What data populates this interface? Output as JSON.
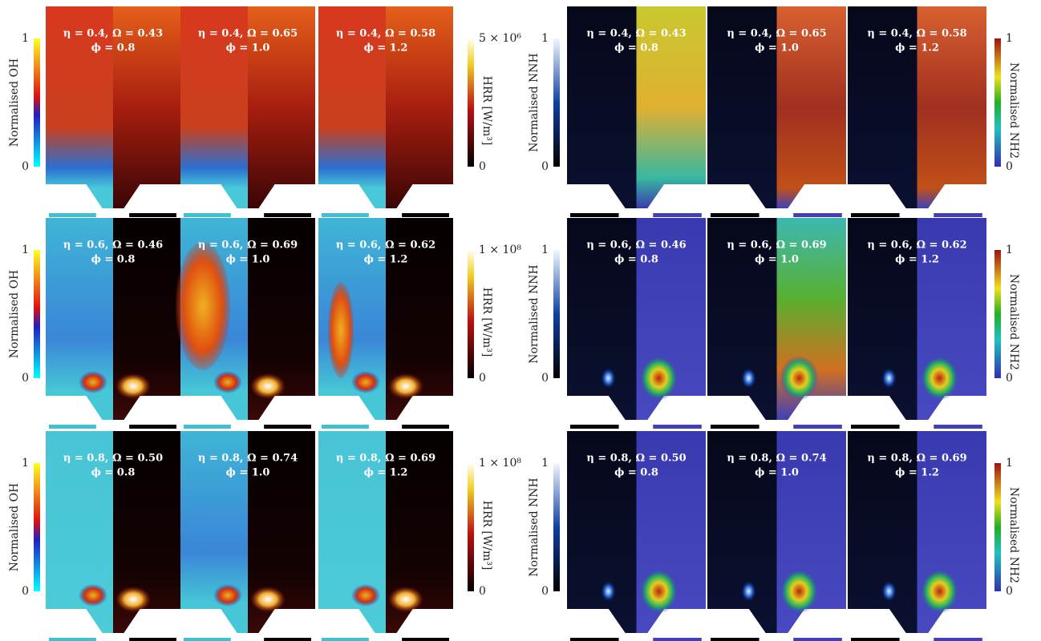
{
  "left": {
    "rows": [
      {
        "bar_a": {
          "label": "Normalised OH",
          "ticks": [
            "1",
            "0"
          ]
        },
        "bar_b": {
          "label": "HRR [W/m³]",
          "ticks": [
            "5 × 10⁶",
            "0"
          ]
        },
        "panels": [
          {
            "line1": "η = 0.4, Ω = 0.43",
            "line2": "ϕ = 0.8"
          },
          {
            "line1": "η = 0.4, Ω = 0.65",
            "line2": "ϕ = 1.0"
          },
          {
            "line1": "η = 0.4, Ω = 0.58",
            "line2": "ϕ = 1.2"
          }
        ]
      },
      {
        "bar_a": {
          "label": "Normalised OH",
          "ticks": [
            "1",
            "0"
          ]
        },
        "bar_b": {
          "label": "HRR [W/m³]",
          "ticks": [
            "1 × 10⁸",
            "0"
          ]
        },
        "panels": [
          {
            "line1": "η = 0.6, Ω = 0.46",
            "line2": "ϕ = 0.8"
          },
          {
            "line1": "η = 0.6, Ω = 0.69",
            "line2": "ϕ = 1.0"
          },
          {
            "line1": "η = 0.6, Ω = 0.62",
            "line2": "ϕ = 1.2"
          }
        ]
      },
      {
        "bar_a": {
          "label": "Normalised OH",
          "ticks": [
            "1",
            "0"
          ]
        },
        "bar_b": {
          "label": "HRR [W/m³]",
          "ticks": [
            "1 × 10⁸",
            "0"
          ]
        },
        "panels": [
          {
            "line1": "η = 0.8, Ω = 0.50",
            "line2": "ϕ = 0.8"
          },
          {
            "line1": "η = 0.8, Ω = 0.74",
            "line2": "ϕ = 1.0"
          },
          {
            "line1": "η = 0.8, Ω = 0.69",
            "line2": "ϕ = 1.2"
          }
        ]
      }
    ]
  },
  "right": {
    "rows": [
      {
        "bar_a": {
          "label": "Normalised NNH",
          "ticks": [
            "1",
            "0"
          ]
        },
        "bar_b": {
          "label": "Normalised NH2",
          "ticks": [
            "1",
            "0"
          ]
        },
        "panels": [
          {
            "line1": "η = 0.4, Ω = 0.43",
            "line2": "ϕ = 0.8"
          },
          {
            "line1": "η = 0.4, Ω = 0.65",
            "line2": "ϕ = 1.0"
          },
          {
            "line1": "η = 0.4, Ω = 0.58",
            "line2": "ϕ = 1.2"
          }
        ]
      },
      {
        "bar_a": {
          "label": "Normalised NNH",
          "ticks": [
            "1",
            "0"
          ]
        },
        "bar_b": {
          "label": "Normalised NH2",
          "ticks": [
            "1",
            "0"
          ]
        },
        "panels": [
          {
            "line1": "η = 0.6, Ω = 0.46",
            "line2": "ϕ = 0.8"
          },
          {
            "line1": "η = 0.6, Ω = 0.69",
            "line2": "ϕ = 1.0"
          },
          {
            "line1": "η = 0.6, Ω = 0.62",
            "line2": "ϕ = 1.2"
          }
        ]
      },
      {
        "bar_a": {
          "label": "Normalised NNH",
          "ticks": [
            "1",
            "0"
          ]
        },
        "bar_b": {
          "label": "Normalised NH2",
          "ticks": [
            "1",
            "0"
          ]
        },
        "panels": [
          {
            "line1": "η = 0.8, Ω = 0.50",
            "line2": "ϕ = 0.8"
          },
          {
            "line1": "η = 0.8, Ω = 0.74",
            "line2": "ϕ = 1.0"
          },
          {
            "line1": "η = 0.8, Ω = 0.69",
            "line2": "ϕ = 1.2"
          }
        ]
      }
    ]
  }
}
